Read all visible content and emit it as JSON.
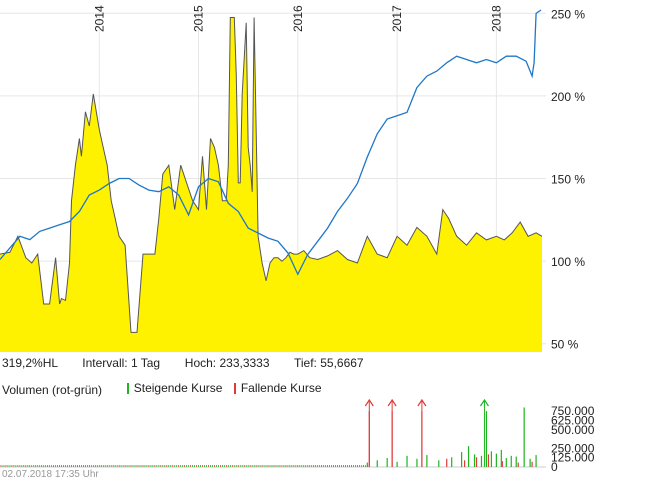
{
  "chart_data": [
    {
      "type": "area",
      "x_range": [
        2013.0,
        2018.5
      ],
      "y_axis_left_ylim": [
        45,
        240
      ],
      "y_axis_right_ylim": [
        45,
        255
      ],
      "years": [
        "2014",
        "2015",
        "2016",
        "2017",
        "2018"
      ],
      "year_positions": [
        2014.0,
        2015.0,
        2016.0,
        2017.0,
        2018.0
      ],
      "right_ticks": [
        {
          "value": 250,
          "label": "250 %"
        },
        {
          "value": 200,
          "label": "200 %"
        },
        {
          "value": 150,
          "label": "150 %"
        },
        {
          "value": 100,
          "label": "100 %"
        },
        {
          "value": 50,
          "label": "50 %"
        }
      ],
      "series": [
        {
          "type": "area",
          "color": "#fff200",
          "line_color": "#555555",
          "x": [
            2013.0,
            2013.1,
            2013.18,
            2013.26,
            2013.32,
            2013.38,
            2013.44,
            2013.5,
            2013.56,
            2013.6,
            2013.62,
            2013.66,
            2013.7,
            2013.72,
            2013.76,
            2013.8,
            2013.82,
            2013.86,
            2013.9,
            2013.94,
            2014.0,
            2014.04,
            2014.08,
            2014.12,
            2014.16,
            2014.2,
            2014.26,
            2014.32,
            2014.38,
            2014.44,
            2014.5,
            2014.56,
            2014.6,
            2014.64,
            2014.7,
            2014.76,
            2014.82,
            2014.88,
            2014.94,
            2015.0,
            2015.04,
            2015.08,
            2015.12,
            2015.16,
            2015.2,
            2015.24,
            2015.28,
            2015.3,
            2015.32,
            2015.36,
            2015.38,
            2015.4,
            2015.42,
            2015.44,
            2015.48,
            2015.5,
            2015.52,
            2015.54,
            2015.56,
            2015.6,
            2015.64,
            2015.68,
            2015.72,
            2015.76,
            2015.8,
            2015.84,
            2015.88,
            2015.92,
            2015.96,
            2016.0,
            2016.06,
            2016.12,
            2016.2,
            2016.3,
            2016.4,
            2016.5,
            2016.6,
            2016.7,
            2016.8,
            2016.9,
            2017.0,
            2017.1,
            2017.2,
            2017.3,
            2017.4,
            2017.46,
            2017.52,
            2017.6,
            2017.7,
            2017.8,
            2017.9,
            2018.0,
            2018.08,
            2018.16,
            2018.24,
            2018.32,
            2018.4,
            2018.46
          ],
          "values": [
            100,
            101,
            110,
            98,
            95,
            100,
            72,
            72,
            98,
            72,
            75,
            74,
            95,
            130,
            150,
            165,
            155,
            180,
            172,
            190,
            170,
            160,
            150,
            130,
            120,
            110,
            105,
            56,
            56,
            100,
            100,
            100,
            120,
            145,
            150,
            125,
            150,
            140,
            130,
            125,
            155,
            125,
            165,
            160,
            150,
            130,
            130,
            150,
            233,
            233,
            200,
            140,
            140,
            190,
            230,
            160,
            150,
            135,
            233,
            110,
            95,
            85,
            95,
            98,
            98,
            96,
            98,
            101,
            100,
            100,
            102,
            98,
            97,
            99,
            102,
            97,
            95,
            110,
            100,
            98,
            110,
            105,
            115,
            110,
            100,
            125,
            120,
            110,
            105,
            112,
            108,
            110,
            108,
            112,
            118,
            110,
            112,
            110
          ]
        },
        {
          "type": "line",
          "color": "#1f77c8",
          "x": [
            2013.0,
            2013.1,
            2013.2,
            2013.3,
            2013.4,
            2013.5,
            2013.6,
            2013.7,
            2013.8,
            2013.9,
            2014.0,
            2014.1,
            2014.2,
            2014.3,
            2014.4,
            2014.5,
            2014.6,
            2014.7,
            2014.8,
            2014.9,
            2015.0,
            2015.1,
            2015.2,
            2015.3,
            2015.4,
            2015.5,
            2015.6,
            2015.7,
            2015.8,
            2015.9,
            2016.0,
            2016.1,
            2016.2,
            2016.3,
            2016.4,
            2016.5,
            2016.6,
            2016.7,
            2016.8,
            2016.9,
            2017.0,
            2017.1,
            2017.2,
            2017.3,
            2017.4,
            2017.5,
            2017.6,
            2017.7,
            2017.8,
            2017.9,
            2018.0,
            2018.1,
            2018.2,
            2018.3,
            2018.36,
            2018.38,
            2018.4,
            2018.45
          ],
          "values": [
            101,
            108,
            115,
            113,
            118,
            120,
            122,
            124,
            130,
            140,
            143,
            147,
            150,
            150,
            146,
            143,
            142,
            145,
            140,
            128,
            145,
            150,
            148,
            135,
            130,
            120,
            117,
            114,
            112,
            105,
            92,
            104,
            112,
            120,
            130,
            138,
            147,
            163,
            177,
            186,
            188,
            190,
            205,
            212,
            215,
            220,
            224,
            222,
            220,
            222,
            220,
            224,
            224,
            221,
            212,
            220,
            250,
            252
          ]
        }
      ]
    },
    {
      "type": "bar",
      "title": "Volumen (rot-grün)",
      "ylim": [
        0,
        900000
      ],
      "right_ticks": [
        {
          "value": 750000,
          "label": "750.000"
        },
        {
          "value": 625000,
          "label": "625.000"
        },
        {
          "value": 500000,
          "label": "500.000"
        },
        {
          "value": 250000,
          "label": "250.000"
        },
        {
          "value": 125000,
          "label": "125.000"
        },
        {
          "value": 0,
          "label": "0"
        }
      ],
      "legend": [
        {
          "label": "Steigende Kurse",
          "color": "#1eb41e"
        },
        {
          "label": "Fallende Kurse",
          "color": "#e03a3a"
        }
      ],
      "series": [
        {
          "name": "Steigende Kurse",
          "color": "#1eb41e",
          "x": [
            2016.7,
            2016.8,
            2016.9,
            2017.0,
            2017.1,
            2017.2,
            2017.3,
            2017.42,
            2017.55,
            2017.65,
            2017.72,
            2017.78,
            2017.85,
            2017.9,
            2017.95,
            2018.0,
            2018.05,
            2018.1,
            2018.15,
            2018.2,
            2018.28,
            2018.34,
            2018.4
          ],
          "values": [
            60000,
            90000,
            120000,
            70000,
            150000,
            110000,
            160000,
            90000,
            130000,
            200000,
            280000,
            170000,
            150000,
            750000,
            210000,
            180000,
            230000,
            120000,
            150000,
            140000,
            800000,
            110000,
            160000
          ]
        },
        {
          "name": "Fallende Kurse",
          "color": "#e03a3a",
          "x": [
            2016.72,
            2016.95,
            2017.25,
            2017.5,
            2017.68,
            2017.8,
            2017.92,
            2018.06,
            2018.22,
            2018.36
          ],
          "values": [
            750000,
            750000,
            750000,
            110000,
            90000,
            130000,
            170000,
            80000,
            60000,
            70000
          ]
        }
      ],
      "arrows": [
        {
          "x": 2016.72,
          "color": "#e03a3a"
        },
        {
          "x": 2016.95,
          "color": "#e03a3a"
        },
        {
          "x": 2017.25,
          "color": "#e03a3a"
        },
        {
          "x": 2017.88,
          "color": "#1eb41e"
        }
      ]
    }
  ],
  "info": {
    "hl": "319,2%HL",
    "interval": "Intervall: 1 Tag",
    "high": "Hoch: 233,3333",
    "low": "Tief: 55,6667"
  },
  "volume_title": "Volumen (rot-grün)",
  "legend_rising": "Steigende Kurse",
  "legend_falling": "Fallende Kurse",
  "timestamp": "02.07.2018 17:35 Uhr"
}
